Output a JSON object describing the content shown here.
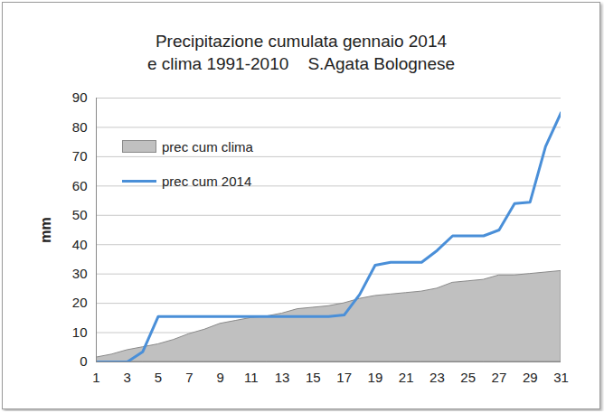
{
  "chart_data": {
    "type": "line",
    "title": "Precipitazione cumulata gennaio 2014",
    "subtitle": "e clima 1991-2010    S.Agata Bolognese",
    "y_label": "mm",
    "x": [
      1,
      2,
      3,
      4,
      5,
      6,
      7,
      8,
      9,
      10,
      11,
      12,
      13,
      14,
      15,
      16,
      17,
      18,
      19,
      20,
      21,
      22,
      23,
      24,
      25,
      26,
      27,
      28,
      29,
      30,
      31
    ],
    "series": [
      {
        "name": "prec cum clima",
        "type": "area",
        "color": "#c0c0c0",
        "values": [
          1.5,
          2.5,
          4,
          5,
          6,
          7.5,
          9.5,
          11,
          13,
          14,
          15,
          15.5,
          16.5,
          18,
          18.5,
          19,
          20,
          21.5,
          22.5,
          23,
          23.5,
          24,
          25,
          27,
          27.5,
          28,
          29.5,
          29.5,
          30,
          30.5,
          31
        ]
      },
      {
        "name": "prec cum 2014",
        "type": "line",
        "color": "#4a8fd8",
        "values": [
          0,
          0,
          0,
          3.5,
          15.5,
          15.5,
          15.5,
          15.5,
          15.5,
          15.5,
          15.5,
          15.5,
          15.5,
          15.5,
          15.5,
          15.5,
          16,
          23,
          33,
          34,
          34,
          34,
          38,
          43,
          43,
          43,
          45,
          54,
          54.5,
          73.5,
          85
        ]
      }
    ],
    "xlim": [
      1,
      31
    ],
    "xticks": [
      1,
      3,
      5,
      7,
      9,
      11,
      13,
      15,
      17,
      19,
      21,
      23,
      25,
      27,
      29,
      31
    ],
    "ylim": [
      0,
      90
    ],
    "yticks": [
      0,
      10,
      20,
      30,
      40,
      50,
      60,
      70,
      80,
      90
    ],
    "grid": true,
    "legend": "top-left"
  }
}
